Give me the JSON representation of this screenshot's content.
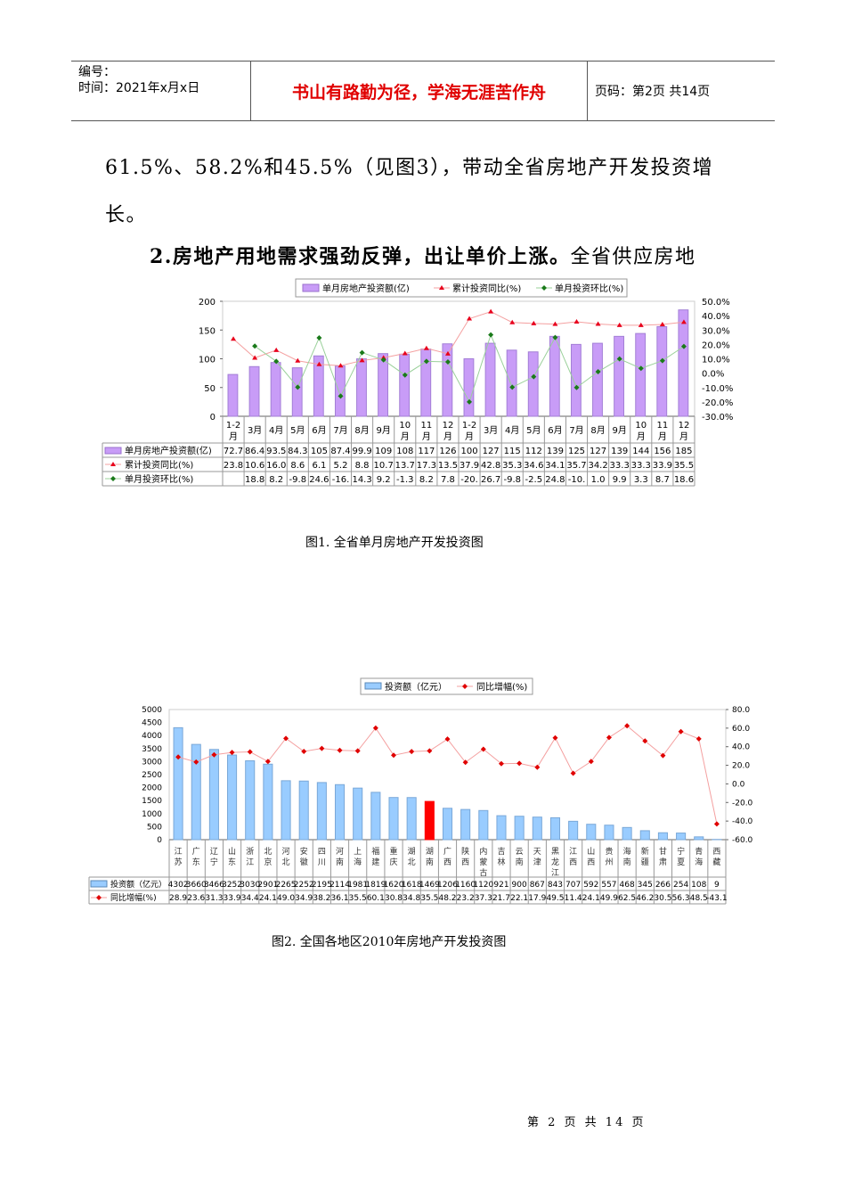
{
  "header": {
    "number_label": "编号：",
    "time_label": "时间：2021年x月x日",
    "motto": "书山有路勤为径，学海无涯苦作舟",
    "page_label": "页码：第2页  共14页"
  },
  "body": {
    "para1": "61.5%、58.2%和45.5%（见图3），带动全省房地产开发投资增",
    "para2": "长。",
    "para3_bold": "2.房地产用地需求强劲反弹，出让单价上涨。",
    "para3_rest": "全省供应房地"
  },
  "figure1": {
    "caption": "图1. 全省单月房地产开发投资图"
  },
  "figure2": {
    "caption": "图2. 全国各地区2010年房地产开发投资图"
  },
  "footer": {
    "page_text": "第 2 页 共 14 页"
  },
  "chart_data": [
    {
      "type": "bar",
      "title": "",
      "categories": [
        "1-2月",
        "3月",
        "4月",
        "5月",
        "6月",
        "7月",
        "8月",
        "9月",
        "10月",
        "11月",
        "12月",
        "1-2月",
        "3月",
        "4月",
        "5月",
        "6月",
        "7月",
        "8月",
        "9月",
        "10月",
        "11月",
        "12月"
      ],
      "series": [
        {
          "name": "单月房地产投资额(亿)",
          "type": "bar",
          "axis": "left",
          "color": "#c89cf7",
          "values": [
            72.7,
            86.4,
            93.5,
            84.3,
            105,
            87.4,
            99.9,
            109,
            108,
            117,
            126,
            100,
            127,
            115,
            112,
            139,
            125,
            127,
            139,
            144,
            156,
            185
          ]
        },
        {
          "name": "累计投资同比(%)",
          "type": "line",
          "axis": "right",
          "color": "#e8001c",
          "marker": "triangle",
          "values": [
            23.8,
            10.6,
            16.0,
            8.6,
            6.1,
            5.2,
            8.8,
            10.7,
            13.7,
            17.3,
            13.5,
            37.9,
            42.8,
            35.3,
            34.6,
            34.1,
            35.7,
            34.2,
            33.3,
            33.3,
            33.9,
            35.5
          ]
        },
        {
          "name": "单月投资环比(%)",
          "type": "line",
          "axis": "right",
          "color": "#1a7a1a",
          "marker": "diamond",
          "values": [
            null,
            18.8,
            8.2,
            -9.8,
            24.6,
            -16.0,
            14.3,
            9.2,
            -1.3,
            8.2,
            7.8,
            -20.0,
            26.7,
            -9.8,
            -2.5,
            24.8,
            -10.0,
            1.0,
            9.9,
            3.3,
            8.7,
            18.6
          ]
        }
      ],
      "table_display": {
        "bar": [
          "72.7",
          "86.4",
          "93.5",
          "84.3",
          "105",
          "87.4",
          "99.9",
          "109",
          "108",
          "117",
          "126",
          "100",
          "127",
          "115",
          "112",
          "139",
          "125",
          "127",
          "139",
          "144",
          "156",
          "185"
        ],
        "yoy": [
          "23.8",
          "10.6",
          "16.0",
          "8.6",
          "6.1",
          "5.2",
          "8.8",
          "10.7",
          "13.7",
          "17.3",
          "13.5",
          "37.9",
          "42.8",
          "35.3",
          "34.6",
          "34.1",
          "35.7",
          "34.2",
          "33.3",
          "33.3",
          "33.9",
          "35.5"
        ],
        "mom": [
          "",
          "18.8",
          "8.2",
          "-9.8",
          "24.6",
          "-16.",
          "14.3",
          "9.2",
          "-1.3",
          "8.2",
          "7.8",
          "-20.",
          "26.7",
          "-9.8",
          "-2.5",
          "24.8",
          "-10.",
          "1.0",
          "9.9",
          "3.3",
          "8.7",
          "18.6"
        ]
      },
      "ylim_left": [
        0,
        200
      ],
      "yticks_left": [
        "0",
        "50",
        "100",
        "150",
        "200"
      ],
      "ylim_right": [
        -30,
        50
      ],
      "yticks_right": [
        "-30.0%",
        "-20.0%",
        "-10.0%",
        "0.0%",
        "10.0%",
        "20.0%",
        "30.0%",
        "40.0%",
        "50.0%"
      ],
      "legend_position": "top",
      "grid": false
    },
    {
      "type": "bar",
      "title": "",
      "categories": [
        "江苏",
        "广东",
        "辽宁",
        "山东",
        "浙江",
        "北京",
        "河北",
        "安徽",
        "四川",
        "河南",
        "上海",
        "福建",
        "重庆",
        "湖北",
        "湖南",
        "广西",
        "陕西",
        "内蒙古",
        "吉林",
        "云南",
        "天津",
        "黑龙江",
        "江西",
        "山西",
        "贵州",
        "海南",
        "新疆",
        "甘肃",
        "宁夏",
        "青海",
        "西藏"
      ],
      "series": [
        {
          "name": "投资额（亿元）",
          "type": "bar",
          "axis": "left",
          "color": "#99ccff",
          "highlight": {
            "index": 14,
            "color": "#ff0000"
          },
          "values": [
            4302,
            3660,
            3466,
            3252,
            3030,
            2901,
            2265,
            2252,
            2195,
            2114,
            1981,
            1819,
            1620,
            1618,
            1469,
            1206,
            1160,
            1120,
            921,
            900,
            867,
            843,
            707,
            592,
            557,
            468,
            345,
            266,
            254,
            108,
            9
          ]
        },
        {
          "name": "同比增幅(%)",
          "type": "line",
          "axis": "right",
          "color": "#e00000",
          "marker": "diamond",
          "values": [
            28.9,
            23.6,
            31.3,
            33.9,
            34.4,
            24.1,
            49.0,
            34.9,
            38.2,
            36.1,
            35.5,
            60.1,
            30.8,
            34.8,
            35.5,
            48.2,
            23.2,
            37.3,
            21.7,
            22.1,
            17.9,
            49.5,
            11.4,
            24.1,
            49.9,
            62.5,
            46.2,
            30.5,
            56.3,
            48.5,
            -43.1
          ]
        }
      ],
      "ylim_left": [
        0,
        5000
      ],
      "yticks_left": [
        "0",
        "500",
        "1000",
        "1500",
        "2000",
        "2500",
        "3000",
        "3500",
        "4000",
        "4500",
        "5000"
      ],
      "ylim_right": [
        -60,
        80
      ],
      "yticks_right": [
        "-60.0",
        "-40.0",
        "-20.0",
        "0.0",
        "20.0",
        "40.0",
        "60.0",
        "80.0"
      ],
      "legend_position": "top",
      "grid": false
    }
  ]
}
